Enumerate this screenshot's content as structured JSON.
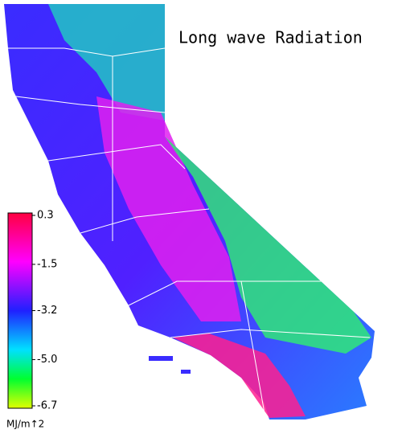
{
  "title": "Long wave Radiation",
  "colorbar": {
    "lim": [
      -6.7,
      0.3
    ],
    "ticks": [
      0.3,
      -1.5,
      -3.2,
      {
        "value": -5,
        "label": "-5.0"
      },
      -6.7
    ],
    "unit": "MJ/m↑2"
  }
}
